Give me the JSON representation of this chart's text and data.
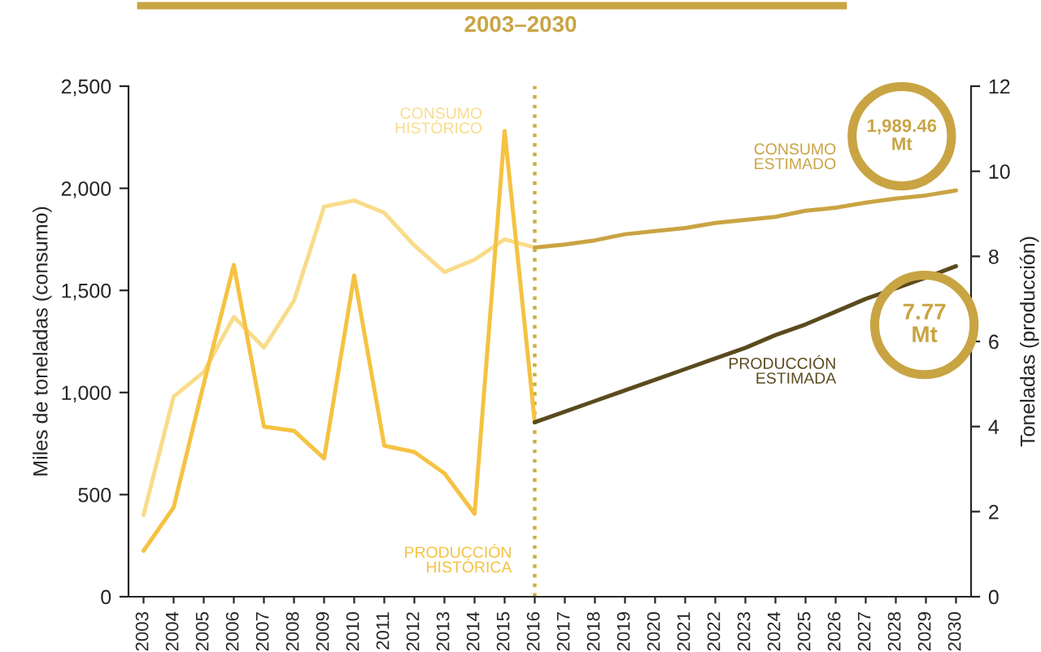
{
  "chart_data": {
    "type": "line",
    "title": "2003–2030",
    "ylabel": "Miles de toneladas (consumo)",
    "y2label": "Toneladas (producción)",
    "categories": [
      "2003",
      "2004",
      "2005",
      "2006",
      "2007",
      "2008",
      "2009",
      "2010",
      "2011",
      "2012",
      "2013",
      "2014",
      "2015",
      "2016",
      "2017",
      "2018",
      "2019",
      "2020",
      "2021",
      "2022",
      "2023",
      "2024",
      "2025",
      "2026",
      "2027",
      "2028",
      "2029",
      "2030"
    ],
    "series": [
      {
        "name": "CONSUMO\nHISTÓRICO",
        "color": "#f9dc8a",
        "values": [
          400,
          980,
          1100,
          1370,
          1220,
          1450,
          1910,
          1940,
          1880,
          1720,
          1590,
          1650,
          1750,
          1710,
          null,
          null,
          null,
          null,
          null,
          null,
          null,
          null,
          null,
          null,
          null,
          null,
          null,
          null
        ]
      },
      {
        "name": "PRODUCCIÓN\nHISTÓRICA",
        "color": "#f5c242",
        "axis": "y2",
        "values": [
          1.08,
          2.1,
          5.0,
          7.8,
          4.0,
          3.9,
          3.25,
          7.55,
          3.55,
          3.4,
          2.9,
          1.95,
          10.95,
          4.1,
          null,
          null,
          null,
          null,
          null,
          null,
          null,
          null,
          null,
          null,
          null,
          null,
          null,
          null
        ]
      },
      {
        "name": "CONSUMO\nESTIMADO",
        "color": "#c9a443",
        "values": [
          null,
          null,
          null,
          null,
          null,
          null,
          null,
          null,
          null,
          null,
          null,
          null,
          null,
          1710,
          1725,
          1745,
          1775,
          1790,
          1805,
          1830,
          1845,
          1860,
          1890,
          1905,
          1930,
          1950,
          1965,
          1989.46
        ],
        "value_labels": [
          null,
          null,
          null,
          null,
          null,
          null,
          null,
          null,
          null,
          null,
          null,
          null,
          null,
          null,
          null,
          null,
          null,
          null,
          null,
          null,
          null,
          null,
          null,
          null,
          null,
          null,
          null,
          "1,989.46\nMt"
        ]
      },
      {
        "name": "PRODUCCIÓN\nESTIMADA",
        "color": "#5a4a1e",
        "axis": "y2",
        "values": [
          null,
          null,
          null,
          null,
          null,
          null,
          null,
          null,
          null,
          null,
          null,
          null,
          null,
          4.1,
          4.35,
          4.6,
          4.85,
          5.1,
          5.35,
          5.6,
          5.85,
          6.15,
          6.4,
          6.7,
          7.0,
          7.25,
          7.5,
          7.77
        ],
        "value_labels": [
          null,
          null,
          null,
          null,
          null,
          null,
          null,
          null,
          null,
          null,
          null,
          null,
          null,
          null,
          null,
          null,
          null,
          null,
          null,
          null,
          null,
          null,
          null,
          null,
          null,
          null,
          null,
          "7.77\nMt"
        ]
      }
    ],
    "ylim": [
      0,
      2500
    ],
    "yticks": [
      0,
      {
        "value": 500,
        "label": "500"
      },
      {
        "value": 1000,
        "label": "1,000"
      },
      {
        "value": 1500,
        "label": "1,500"
      },
      {
        "value": 2000,
        "label": "2,000"
      },
      {
        "value": 2500,
        "label": "2,500"
      }
    ],
    "y2lim": [
      0,
      12
    ],
    "y2ticks": [
      0,
      2,
      4,
      6,
      8,
      10,
      12
    ],
    "ref_lines": [
      {
        "axis": "x",
        "value": "2016",
        "color": "#c9b040",
        "line_style": "dotted"
      }
    ],
    "grid": false,
    "legend": false,
    "marker": "none",
    "line_style": "solid"
  }
}
